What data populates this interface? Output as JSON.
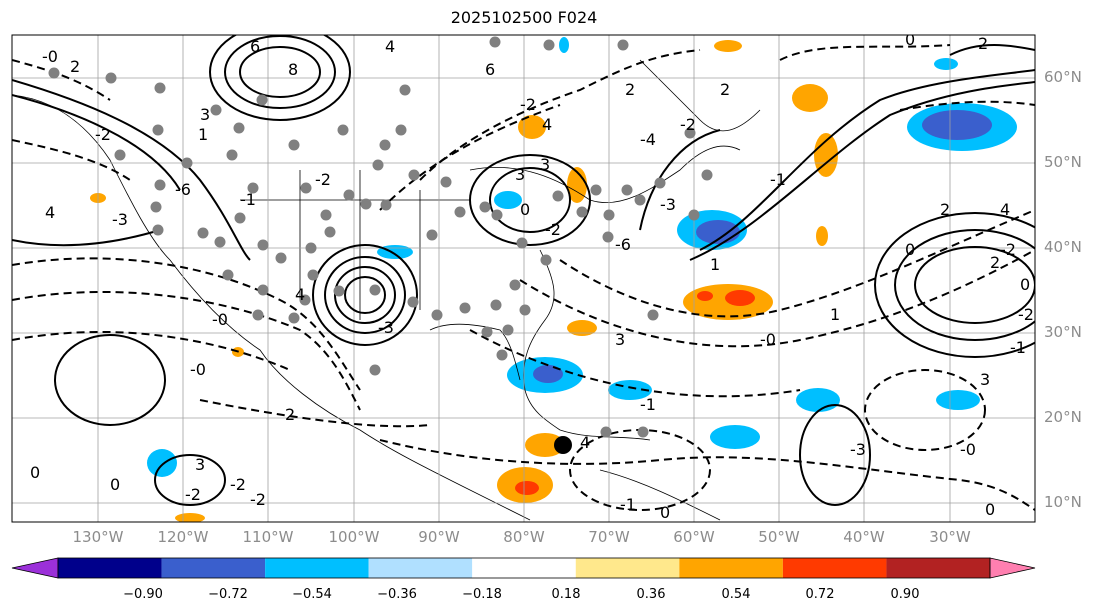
{
  "title": "2025102500 F024",
  "lat_labels": [
    "60°N",
    "50°N",
    "40°N",
    "30°N",
    "20°N",
    "10°N"
  ],
  "lon_labels": [
    "130°W",
    "120°W",
    "110°W",
    "100°W",
    "90°W",
    "80°W",
    "70°W",
    "60°W",
    "50°W",
    "40°W",
    "30°W"
  ],
  "colorbar": {
    "ticks": [
      "−0.90",
      "−0.72",
      "−0.54",
      "−0.36",
      "−0.18",
      "0.18",
      "0.36",
      "0.54",
      "0.72",
      "0.90"
    ],
    "colors": [
      "#9b30d9",
      "#00008b",
      "#3a5fcd",
      "#00bfff",
      "#b0e0ff",
      "#ffffff",
      "#ffe88c",
      "#ffa500",
      "#ff3a00",
      "#b22222",
      "#ff7fb0"
    ]
  },
  "contour_labels": [
    "-0",
    "6",
    "8",
    "4",
    "-6",
    "2",
    "-2",
    "4",
    "3",
    "1",
    "-1",
    "-3",
    "-2",
    "6",
    "4",
    "-2",
    "4",
    "-3",
    "-0",
    "-0",
    "3",
    "-2",
    "0",
    "3",
    "-6",
    "-4",
    "-3",
    "2",
    "-1",
    "1",
    "-0",
    "-2",
    "2",
    "1",
    "0",
    "2",
    "-2",
    "0",
    "-2",
    "-1",
    "-0",
    "4",
    "2",
    "3",
    "0",
    "-1",
    "-3",
    "2",
    "0",
    "-2",
    "3",
    "0",
    "-2",
    "-2",
    "4",
    "3",
    "-1",
    "0",
    "0",
    "2"
  ],
  "map_colors": {
    "ocean": "#ffffff",
    "grid": "#a0a0a0",
    "marker": "#808080",
    "storm": "#000000"
  }
}
